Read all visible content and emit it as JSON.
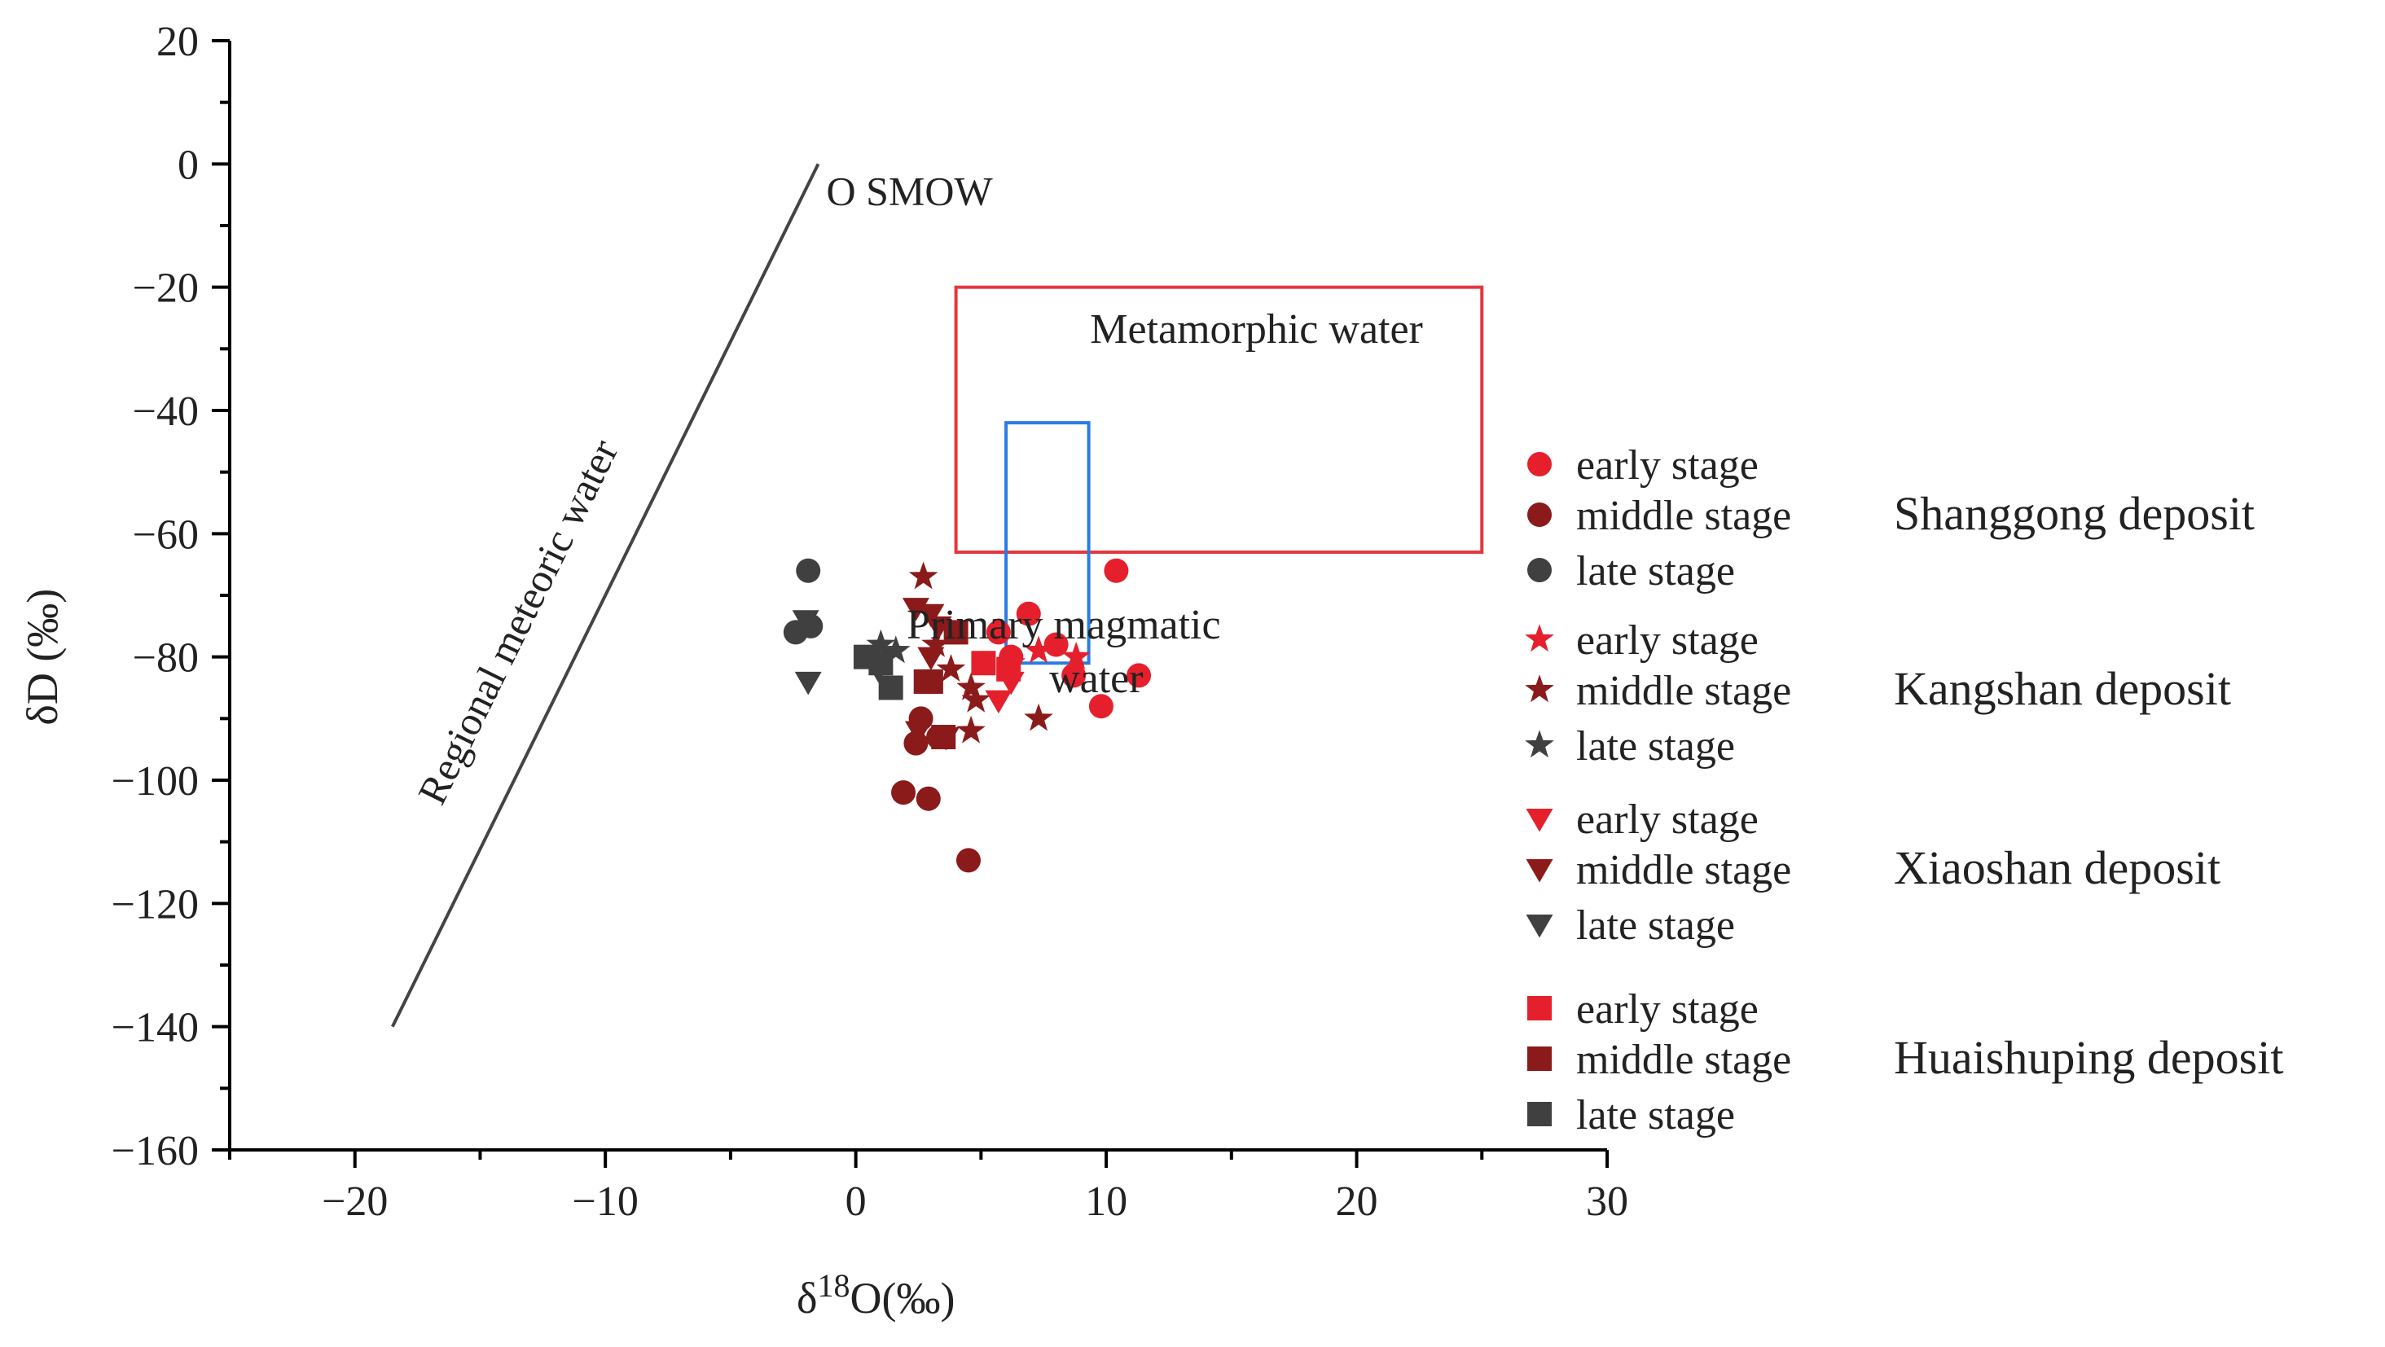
{
  "chart_data": {
    "type": "scatter",
    "title": "",
    "xlabel": {
      "prefix": "δ",
      "sup": "18",
      "suffix": "O(‰)"
    },
    "ylabel": "δD (‰)",
    "xlim": [
      -25,
      30
    ],
    "ylim": [
      -160,
      20
    ],
    "x_ticks": [
      -20,
      -10,
      0,
      10,
      20,
      30
    ],
    "y_ticks": [
      20,
      0,
      -20,
      -40,
      -60,
      -80,
      -100,
      -120,
      -140,
      -160
    ],
    "x_tick_labels": [
      "−20",
      "−10",
      "0",
      "10",
      "20",
      "30"
    ],
    "y_tick_labels": [
      "20",
      "0",
      "−20",
      "−40",
      "−60",
      "−80",
      "−100",
      "−120",
      "−140",
      "−160"
    ],
    "reference_lines": [
      {
        "name": "Regional meteoric water",
        "label": "Regional meteoric water",
        "x": [
          -18.5,
          -1.5
        ],
        "y": [
          -140,
          0
        ],
        "color": "#444444"
      }
    ],
    "point_labels": [
      {
        "text": "O SMOW",
        "x": -1.5,
        "y": 0,
        "color": "#222222"
      }
    ],
    "regions": [
      {
        "name": "Metamorphic water",
        "label": "Metamorphic water",
        "x": [
          4,
          25
        ],
        "y": [
          -63,
          -20
        ],
        "color": "#e5363d",
        "label_at": [
          16,
          -29
        ]
      },
      {
        "name": "Primary magmatic water",
        "label_lines": [
          "Primary magmatic",
          "water"
        ],
        "polygon": [
          [
            6,
            -42
          ],
          [
            9.3,
            -42
          ],
          [
            9.3,
            -81
          ],
          [
            6,
            -81
          ]
        ],
        "color": "#2b7be3",
        "label_at": [
          8.3,
          -77
        ]
      }
    ],
    "series": [
      {
        "deposit": "Shanggong deposit",
        "name": "early stage",
        "marker": "circle",
        "color": "#e5202c",
        "points": [
          [
            10.4,
            -66
          ],
          [
            6.9,
            -73
          ],
          [
            5.7,
            -76
          ],
          [
            8,
            -78
          ],
          [
            8.7,
            -83
          ],
          [
            11.3,
            -83
          ],
          [
            9.8,
            -88
          ],
          [
            6.2,
            -80
          ]
        ]
      },
      {
        "deposit": "Shanggong deposit",
        "name": "middle stage",
        "marker": "circle",
        "color": "#8b1a1a",
        "points": [
          [
            2.4,
            -94
          ],
          [
            1.9,
            -102
          ],
          [
            2.9,
            -103
          ],
          [
            4.5,
            -113
          ],
          [
            3.3,
            -93
          ],
          [
            2.6,
            -90
          ]
        ]
      },
      {
        "deposit": "Shanggong deposit",
        "name": "late stage",
        "marker": "circle",
        "color": "#404040",
        "points": [
          [
            -1.9,
            -66
          ],
          [
            -2.4,
            -76
          ],
          [
            -1.8,
            -75
          ]
        ]
      },
      {
        "deposit": "Kangshan deposit",
        "name": "early stage",
        "marker": "star",
        "color": "#e5202c",
        "points": [
          [
            7.3,
            -79
          ],
          [
            8.8,
            -80
          ],
          [
            6.2,
            -81
          ]
        ]
      },
      {
        "deposit": "Kangshan deposit",
        "name": "middle stage",
        "marker": "star",
        "color": "#8b1a1a",
        "points": [
          [
            2.7,
            -67
          ],
          [
            3.8,
            -82
          ],
          [
            4.6,
            -85
          ],
          [
            4.8,
            -87
          ],
          [
            4.6,
            -92
          ],
          [
            7.3,
            -90
          ],
          [
            3.2,
            -78
          ]
        ]
      },
      {
        "deposit": "Kangshan deposit",
        "name": "late stage",
        "marker": "star",
        "color": "#404040",
        "points": [
          [
            1.0,
            -78
          ],
          [
            1.6,
            -79
          ]
        ]
      },
      {
        "deposit": "Xiaoshan deposit",
        "name": "early stage",
        "marker": "triangle-down",
        "color": "#e5202c",
        "points": [
          [
            5.7,
            -87
          ],
          [
            6.2,
            -84
          ]
        ]
      },
      {
        "deposit": "Xiaoshan deposit",
        "name": "middle stage",
        "marker": "triangle-down",
        "color": "#8b1a1a",
        "points": [
          [
            2.4,
            -72
          ],
          [
            3.0,
            -73
          ],
          [
            3.3,
            -75
          ],
          [
            3.0,
            -80
          ],
          [
            2.5,
            -92
          ],
          [
            3.6,
            -93
          ]
        ]
      },
      {
        "deposit": "Xiaoshan deposit",
        "name": "late stage",
        "marker": "triangle-down",
        "color": "#404040",
        "points": [
          [
            -2.0,
            -74
          ],
          [
            -1.9,
            -84
          ],
          [
            0.9,
            -82
          ]
        ]
      },
      {
        "deposit": "Huaishuping deposit",
        "name": "early stage",
        "marker": "square",
        "color": "#e5202c",
        "points": [
          [
            5.1,
            -81
          ],
          [
            6.1,
            -82
          ]
        ]
      },
      {
        "deposit": "Huaishuping deposit",
        "name": "middle stage",
        "marker": "square",
        "color": "#8b1a1a",
        "points": [
          [
            4.0,
            -76
          ],
          [
            3.0,
            -84
          ],
          [
            3.5,
            -93
          ],
          [
            2.8,
            -84
          ]
        ]
      },
      {
        "deposit": "Huaishuping deposit",
        "name": "late stage",
        "marker": "square",
        "color": "#404040",
        "points": [
          [
            0.4,
            -80
          ],
          [
            1.0,
            -81
          ],
          [
            1.4,
            -85
          ]
        ]
      }
    ],
    "legend": [
      {
        "deposit": "Shanggong deposit",
        "items": [
          {
            "label": "early stage",
            "marker": "circle",
            "color": "#e5202c"
          },
          {
            "label": "middle stage",
            "marker": "circle",
            "color": "#8b1a1a"
          },
          {
            "label": "late stage",
            "marker": "circle",
            "color": "#404040"
          }
        ]
      },
      {
        "deposit": "Kangshan deposit",
        "items": [
          {
            "label": "early stage",
            "marker": "star",
            "color": "#e5202c"
          },
          {
            "label": "middle stage",
            "marker": "star",
            "color": "#8b1a1a"
          },
          {
            "label": "late stage",
            "marker": "star",
            "color": "#404040"
          }
        ]
      },
      {
        "deposit": "Xiaoshan deposit",
        "items": [
          {
            "label": "early stage",
            "marker": "triangle-down",
            "color": "#e5202c"
          },
          {
            "label": "middle stage",
            "marker": "triangle-down",
            "color": "#8b1a1a"
          },
          {
            "label": "late stage",
            "marker": "triangle-down",
            "color": "#404040"
          }
        ]
      },
      {
        "deposit": "Huaishuping deposit",
        "items": [
          {
            "label": "early stage",
            "marker": "square",
            "color": "#e5202c"
          },
          {
            "label": "middle stage",
            "marker": "square",
            "color": "#8b1a1a"
          },
          {
            "label": "late stage",
            "marker": "square",
            "color": "#404040"
          }
        ]
      }
    ],
    "legend_placement": "right",
    "grid": false
  }
}
